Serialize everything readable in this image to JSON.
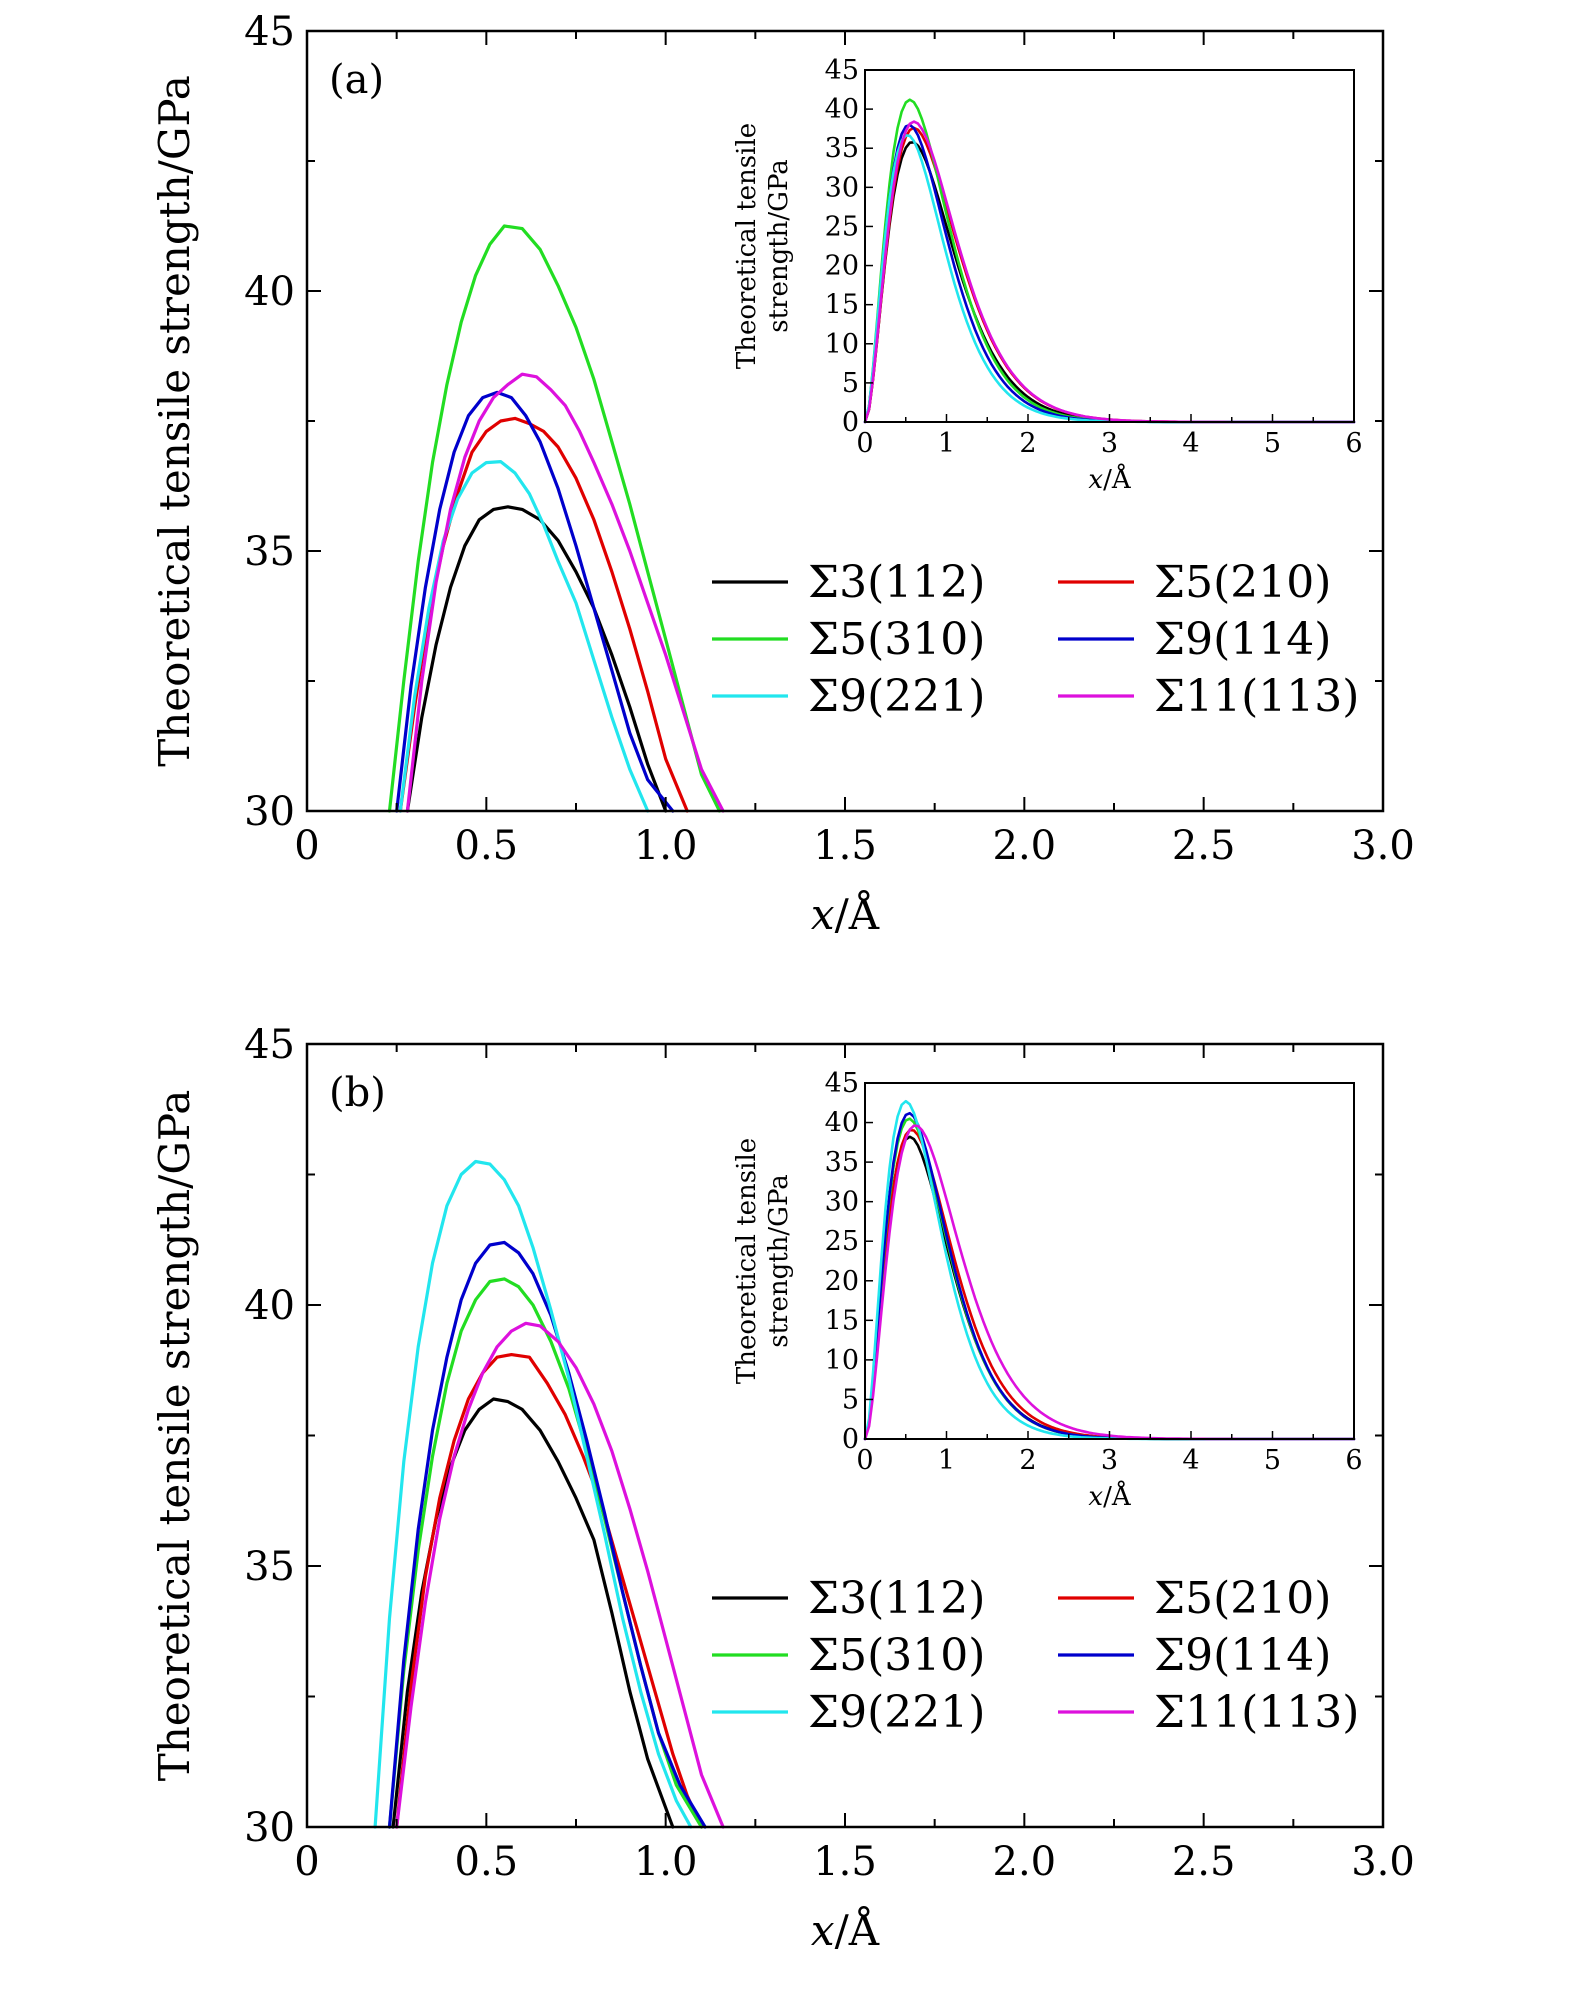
{
  "colors": {
    "Σ3(112)": "#000000",
    "Σ5(210)": "#e00000",
    "Σ5(310)": "#22dd22",
    "Σ9(114)": "#0000cc",
    "Σ9(221)": "#22e6ee",
    "Σ11(113)": "#dd11dd"
  },
  "legend": [
    "Σ3(112)",
    "Σ5(210)",
    "Σ5(310)",
    "Σ9(114)",
    "Σ9(221)",
    "Σ11(113)"
  ],
  "chart_data": [
    {
      "type": "line",
      "panel_label": "(a)",
      "xlabel": "x/Å",
      "ylabel": "Theoretical tensile strength/GPa",
      "xlim": [
        0,
        3.0
      ],
      "ylim": [
        30,
        45
      ],
      "xticks": [
        "0",
        "0.5",
        "1.0",
        "1.5",
        "2.0",
        "2.5",
        "3.0"
      ],
      "yticks": [
        "30",
        "35",
        "40",
        "45"
      ],
      "series": [
        {
          "name": "Σ3(112)",
          "x": [
            0.28,
            0.32,
            0.36,
            0.4,
            0.44,
            0.48,
            0.52,
            0.56,
            0.6,
            0.65,
            0.7,
            0.75,
            0.8,
            0.85,
            0.9,
            0.95,
            1.0
          ],
          "y": [
            30.0,
            31.8,
            33.2,
            34.3,
            35.1,
            35.6,
            35.8,
            35.85,
            35.8,
            35.6,
            35.2,
            34.6,
            33.9,
            33.0,
            32.0,
            30.9,
            30.0
          ]
        },
        {
          "name": "Σ5(210)",
          "x": [
            0.26,
            0.3,
            0.34,
            0.38,
            0.42,
            0.46,
            0.5,
            0.54,
            0.58,
            0.62,
            0.66,
            0.7,
            0.75,
            0.8,
            0.85,
            0.9,
            0.95,
            1.0,
            1.06
          ],
          "y": [
            30.0,
            32.0,
            33.8,
            35.1,
            36.1,
            36.9,
            37.3,
            37.5,
            37.55,
            37.45,
            37.3,
            37.0,
            36.4,
            35.6,
            34.6,
            33.5,
            32.3,
            31.0,
            30.0
          ]
        },
        {
          "name": "Σ5(310)",
          "x": [
            0.23,
            0.27,
            0.31,
            0.35,
            0.39,
            0.43,
            0.47,
            0.51,
            0.55,
            0.6,
            0.65,
            0.7,
            0.75,
            0.8,
            0.85,
            0.9,
            0.95,
            1.0,
            1.05,
            1.1,
            1.15
          ],
          "y": [
            30.0,
            32.5,
            34.8,
            36.7,
            38.2,
            39.4,
            40.3,
            40.9,
            41.25,
            41.2,
            40.8,
            40.1,
            39.3,
            38.3,
            37.1,
            35.9,
            34.6,
            33.3,
            32.0,
            30.7,
            30.0
          ]
        },
        {
          "name": "Σ9(114)",
          "x": [
            0.25,
            0.29,
            0.33,
            0.37,
            0.41,
            0.45,
            0.49,
            0.53,
            0.57,
            0.61,
            0.65,
            0.7,
            0.75,
            0.8,
            0.85,
            0.9,
            0.95,
            1.02
          ],
          "y": [
            30.0,
            32.4,
            34.3,
            35.8,
            36.9,
            37.6,
            37.95,
            38.05,
            37.95,
            37.6,
            37.1,
            36.2,
            35.1,
            33.9,
            32.7,
            31.5,
            30.6,
            30.0
          ]
        },
        {
          "name": "Σ9(221)",
          "x": [
            0.26,
            0.3,
            0.34,
            0.38,
            0.42,
            0.46,
            0.5,
            0.54,
            0.58,
            0.62,
            0.66,
            0.7,
            0.75,
            0.8,
            0.85,
            0.9,
            0.95
          ],
          "y": [
            30.0,
            32.2,
            33.9,
            35.2,
            36.0,
            36.5,
            36.7,
            36.72,
            36.5,
            36.1,
            35.5,
            34.8,
            34.0,
            32.9,
            31.8,
            30.8,
            30.0
          ]
        },
        {
          "name": "Σ11(113)",
          "x": [
            0.28,
            0.32,
            0.36,
            0.4,
            0.44,
            0.48,
            0.52,
            0.56,
            0.6,
            0.64,
            0.68,
            0.72,
            0.76,
            0.8,
            0.85,
            0.9,
            0.95,
            1.0,
            1.05,
            1.1,
            1.16
          ],
          "y": [
            30.0,
            32.5,
            34.4,
            35.8,
            36.8,
            37.5,
            37.95,
            38.2,
            38.4,
            38.35,
            38.1,
            37.8,
            37.3,
            36.7,
            35.9,
            35.0,
            34.0,
            33.0,
            31.9,
            30.8,
            30.0
          ]
        }
      ]
    },
    {
      "type": "line",
      "inset_of": "(a)",
      "xlabel": "x/Å",
      "ylabel": "Theoretical tensile strength/GPa",
      "xlim": [
        0,
        6
      ],
      "ylim": [
        0,
        45
      ],
      "xticks": [
        "0",
        "1",
        "2",
        "3",
        "4",
        "5",
        "6"
      ],
      "yticks": [
        "0",
        "5",
        "10",
        "15",
        "20",
        "25",
        "30",
        "35",
        "40",
        "45"
      ],
      "series": [
        {
          "name": "Σ3(112)",
          "peak_x": 0.58,
          "peak_y": 35.8
        },
        {
          "name": "Σ5(210)",
          "peak_x": 0.6,
          "peak_y": 37.6
        },
        {
          "name": "Σ5(310)",
          "peak_x": 0.55,
          "peak_y": 41.2
        },
        {
          "name": "Σ9(114)",
          "peak_x": 0.54,
          "peak_y": 38.0
        },
        {
          "name": "Σ9(221)",
          "peak_x": 0.52,
          "peak_y": 36.7
        },
        {
          "name": "Σ11(113)",
          "peak_x": 0.6,
          "peak_y": 38.4
        }
      ]
    },
    {
      "type": "line",
      "panel_label": "(b)",
      "xlabel": "x/Å",
      "ylabel": "Theoretical tensile strength/GPa",
      "xlim": [
        0,
        3.0
      ],
      "ylim": [
        30,
        45
      ],
      "xticks": [
        "0",
        "0.5",
        "1.0",
        "1.5",
        "2.0",
        "2.5",
        "3.0"
      ],
      "yticks": [
        "30",
        "35",
        "40",
        "45"
      ],
      "series": [
        {
          "name": "Σ3(112)",
          "x": [
            0.24,
            0.28,
            0.32,
            0.36,
            0.4,
            0.44,
            0.48,
            0.52,
            0.56,
            0.6,
            0.65,
            0.7,
            0.75,
            0.8,
            0.85,
            0.9,
            0.95,
            1.02
          ],
          "y": [
            30.0,
            32.6,
            34.5,
            35.9,
            36.9,
            37.6,
            38.0,
            38.2,
            38.15,
            38.0,
            37.6,
            37.0,
            36.3,
            35.5,
            34.1,
            32.6,
            31.3,
            30.0
          ]
        },
        {
          "name": "Σ5(210)",
          "x": [
            0.25,
            0.29,
            0.33,
            0.37,
            0.41,
            0.45,
            0.49,
            0.53,
            0.57,
            0.62,
            0.67,
            0.72,
            0.77,
            0.82,
            0.87,
            0.92,
            0.97,
            1.02,
            1.06,
            1.1
          ],
          "y": [
            30.0,
            32.7,
            34.8,
            36.3,
            37.4,
            38.2,
            38.7,
            39.0,
            39.05,
            39.0,
            38.5,
            37.9,
            37.1,
            36.2,
            35.0,
            33.8,
            32.6,
            31.4,
            30.6,
            30.0
          ]
        },
        {
          "name": "Σ5(310)",
          "x": [
            0.23,
            0.27,
            0.31,
            0.35,
            0.39,
            0.43,
            0.47,
            0.51,
            0.55,
            0.59,
            0.63,
            0.68,
            0.73,
            0.78,
            0.83,
            0.88,
            0.93,
            0.98,
            1.03,
            1.1
          ],
          "y": [
            30.0,
            33.0,
            35.3,
            37.1,
            38.5,
            39.5,
            40.1,
            40.45,
            40.5,
            40.35,
            40.0,
            39.3,
            38.4,
            37.2,
            35.9,
            34.5,
            33.1,
            31.8,
            30.8,
            30.0
          ]
        },
        {
          "name": "Σ9(114)",
          "x": [
            0.23,
            0.27,
            0.31,
            0.35,
            0.39,
            0.43,
            0.47,
            0.51,
            0.55,
            0.59,
            0.63,
            0.68,
            0.73,
            0.78,
            0.83,
            0.88,
            0.93,
            0.98,
            1.04,
            1.11
          ],
          "y": [
            30.0,
            33.2,
            35.7,
            37.6,
            39.0,
            40.1,
            40.8,
            41.15,
            41.2,
            41.0,
            40.6,
            39.8,
            38.7,
            37.4,
            36.0,
            34.5,
            33.1,
            31.8,
            30.8,
            30.0
          ]
        },
        {
          "name": "Σ9(221)",
          "x": [
            0.19,
            0.23,
            0.27,
            0.31,
            0.35,
            0.39,
            0.43,
            0.47,
            0.51,
            0.55,
            0.59,
            0.63,
            0.68,
            0.73,
            0.78,
            0.83,
            0.88,
            0.93,
            0.98,
            1.03,
            1.07
          ],
          "y": [
            30.0,
            34.0,
            37.0,
            39.2,
            40.8,
            41.9,
            42.5,
            42.75,
            42.7,
            42.4,
            41.9,
            41.1,
            39.9,
            38.6,
            37.1,
            35.6,
            34.0,
            32.6,
            31.4,
            30.5,
            30.0
          ]
        },
        {
          "name": "Σ11(113)",
          "x": [
            0.25,
            0.29,
            0.33,
            0.37,
            0.41,
            0.45,
            0.49,
            0.53,
            0.57,
            0.61,
            0.65,
            0.7,
            0.75,
            0.8,
            0.85,
            0.9,
            0.95,
            1.0,
            1.05,
            1.1,
            1.16
          ],
          "y": [
            30.0,
            32.3,
            34.3,
            35.9,
            37.1,
            38.0,
            38.7,
            39.2,
            39.5,
            39.65,
            39.6,
            39.3,
            38.8,
            38.1,
            37.2,
            36.1,
            34.9,
            33.6,
            32.3,
            31.0,
            30.0
          ]
        }
      ]
    },
    {
      "type": "line",
      "inset_of": "(b)",
      "xlabel": "x/Å",
      "ylabel": "Theoretical tensile strength/GPa",
      "xlim": [
        0,
        6
      ],
      "ylim": [
        0,
        45
      ],
      "xticks": [
        "0",
        "1",
        "2",
        "3",
        "4",
        "5",
        "6"
      ],
      "yticks": [
        "0",
        "5",
        "10",
        "15",
        "20",
        "25",
        "30",
        "35",
        "40",
        "45"
      ],
      "series": [
        {
          "name": "Σ3(112)",
          "peak_x": 0.55,
          "peak_y": 38.2
        },
        {
          "name": "Σ5(210)",
          "peak_x": 0.57,
          "peak_y": 39.1
        },
        {
          "name": "Σ5(310)",
          "peak_x": 0.54,
          "peak_y": 40.5
        },
        {
          "name": "Σ9(114)",
          "peak_x": 0.54,
          "peak_y": 41.2
        },
        {
          "name": "Σ9(221)",
          "peak_x": 0.5,
          "peak_y": 42.7
        },
        {
          "name": "Σ11(113)",
          "peak_x": 0.62,
          "peak_y": 39.65
        }
      ]
    }
  ]
}
